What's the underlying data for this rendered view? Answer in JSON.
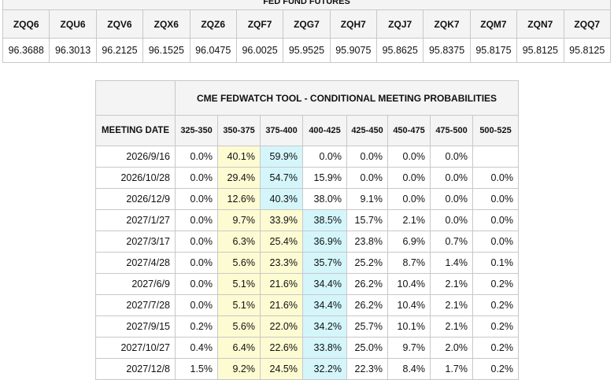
{
  "futures": {
    "title": "FED FUND FUTURES",
    "symbols": [
      "ZQQ6",
      "ZQU6",
      "ZQV6",
      "ZQX6",
      "ZQZ6",
      "ZQF7",
      "ZQG7",
      "ZQH7",
      "ZQJ7",
      "ZQK7",
      "ZQM7",
      "ZQN7",
      "ZQQ7"
    ],
    "prices": [
      "96.3688",
      "96.3013",
      "96.2125",
      "96.1525",
      "96.0475",
      "96.0025",
      "95.9525",
      "95.9075",
      "95.8625",
      "95.8375",
      "95.8175",
      "95.8125",
      "95.8125"
    ]
  },
  "fedwatch": {
    "title": "CME FEDWATCH TOOL - CONDITIONAL MEETING PROBABILITIES",
    "date_header": "MEETING DATE",
    "ranges": [
      "325-350",
      "350-375",
      "375-400",
      "400-425",
      "425-450",
      "450-475",
      "475-500",
      "500-525"
    ],
    "highlight_colors": {
      "yellow": "#fdfbd2",
      "cyan": "#d4f6fb"
    },
    "rows": [
      {
        "date": "2026/9/16",
        "values": [
          "0.0%",
          "40.1%",
          "59.9%",
          "0.0%",
          "0.0%",
          "0.0%",
          "0.0%",
          ""
        ],
        "hl": [
          -1,
          1,
          2,
          -1,
          -1,
          -1,
          -1,
          -1
        ]
      },
      {
        "date": "2026/10/28",
        "values": [
          "0.0%",
          "29.4%",
          "54.7%",
          "15.9%",
          "0.0%",
          "0.0%",
          "0.0%",
          "0.0%"
        ],
        "hl": [
          -1,
          1,
          2,
          -1,
          -1,
          -1,
          -1,
          -1
        ]
      },
      {
        "date": "2026/12/9",
        "values": [
          "0.0%",
          "12.6%",
          "40.3%",
          "38.0%",
          "9.1%",
          "0.0%",
          "0.0%",
          "0.0%"
        ],
        "hl": [
          -1,
          1,
          2,
          -1,
          -1,
          -1,
          -1,
          -1
        ]
      },
      {
        "date": "2027/1/27",
        "values": [
          "0.0%",
          "9.7%",
          "33.9%",
          "38.5%",
          "15.7%",
          "2.1%",
          "0.0%",
          "0.0%"
        ],
        "hl": [
          -1,
          1,
          1,
          2,
          -1,
          -1,
          -1,
          -1
        ]
      },
      {
        "date": "2027/3/17",
        "values": [
          "0.0%",
          "6.3%",
          "25.4%",
          "36.9%",
          "23.8%",
          "6.9%",
          "0.7%",
          "0.0%"
        ],
        "hl": [
          -1,
          1,
          1,
          2,
          -1,
          -1,
          -1,
          -1
        ]
      },
      {
        "date": "2027/4/28",
        "values": [
          "0.0%",
          "5.6%",
          "23.3%",
          "35.7%",
          "25.2%",
          "8.7%",
          "1.4%",
          "0.1%"
        ],
        "hl": [
          -1,
          1,
          1,
          2,
          -1,
          -1,
          -1,
          -1
        ]
      },
      {
        "date": "2027/6/9",
        "values": [
          "0.0%",
          "5.1%",
          "21.6%",
          "34.4%",
          "26.2%",
          "10.4%",
          "2.1%",
          "0.2%"
        ],
        "hl": [
          -1,
          1,
          1,
          2,
          -1,
          -1,
          -1,
          -1
        ]
      },
      {
        "date": "2027/7/28",
        "values": [
          "0.0%",
          "5.1%",
          "21.6%",
          "34.4%",
          "26.2%",
          "10.4%",
          "2.1%",
          "0.2%"
        ],
        "hl": [
          -1,
          1,
          1,
          2,
          -1,
          -1,
          -1,
          -1
        ]
      },
      {
        "date": "2027/9/15",
        "values": [
          "0.2%",
          "5.6%",
          "22.0%",
          "34.2%",
          "25.7%",
          "10.1%",
          "2.1%",
          "0.2%"
        ],
        "hl": [
          -1,
          1,
          1,
          2,
          -1,
          -1,
          -1,
          -1
        ]
      },
      {
        "date": "2027/10/27",
        "values": [
          "0.4%",
          "6.4%",
          "22.6%",
          "33.8%",
          "25.0%",
          "9.7%",
          "2.0%",
          "0.2%"
        ],
        "hl": [
          -1,
          1,
          1,
          2,
          -1,
          -1,
          -1,
          -1
        ]
      },
      {
        "date": "2027/12/8",
        "values": [
          "1.5%",
          "9.2%",
          "24.5%",
          "32.2%",
          "22.3%",
          "8.4%",
          "1.7%",
          "0.2%"
        ],
        "hl": [
          -1,
          1,
          1,
          2,
          -1,
          -1,
          -1,
          -1
        ]
      }
    ]
  }
}
